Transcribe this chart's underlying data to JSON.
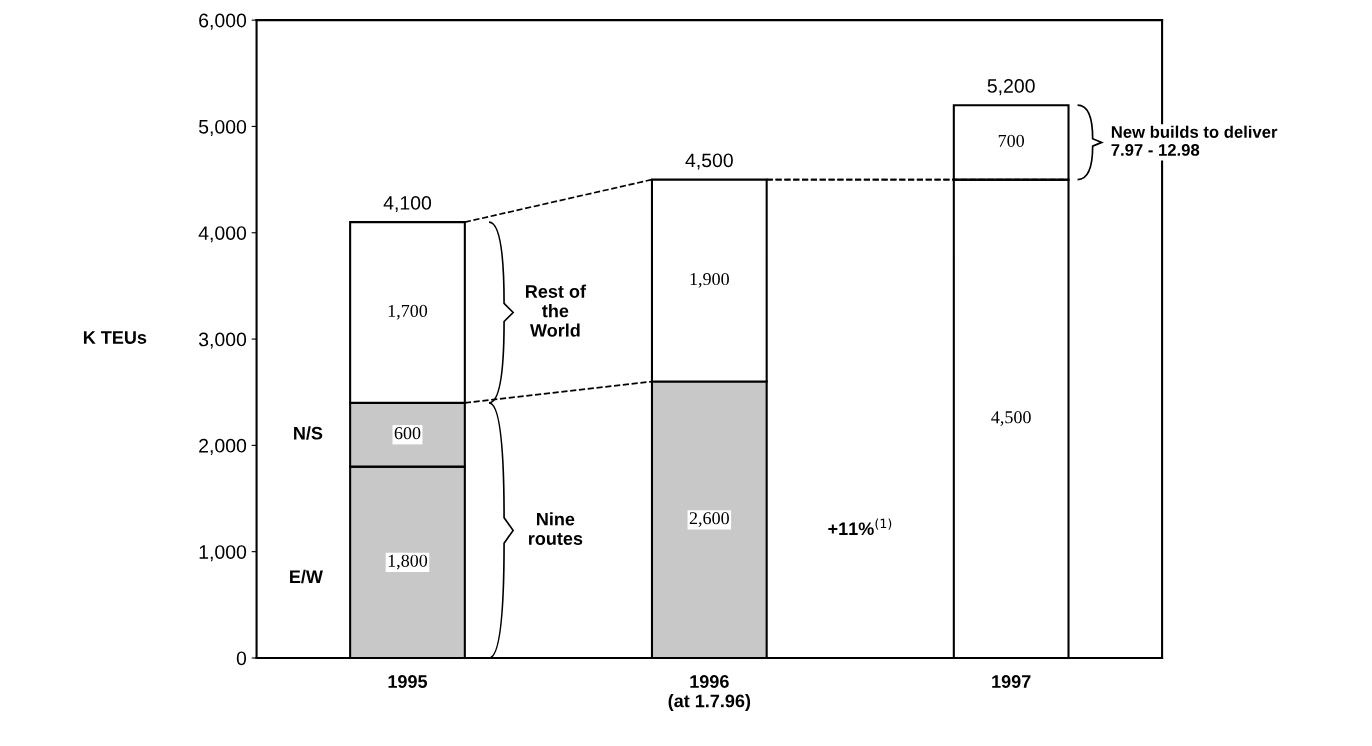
{
  "chart_data": {
    "type": "bar",
    "stacked": true,
    "categories": [
      "1995",
      "1996\n(at 1.7.96)",
      "1997"
    ],
    "series": [
      {
        "name": "E/W",
        "color": "#c8c8c8",
        "values": [
          1800,
          2600,
          null
        ],
        "value_labels": [
          "1,800",
          "2,600",
          null
        ]
      },
      {
        "name": "N/S",
        "color": "#c8c8c8",
        "values": [
          600,
          null,
          null
        ],
        "value_labels": [
          "600",
          null,
          null
        ]
      },
      {
        "color": "#ffffff",
        "values": [
          1700,
          1900,
          4500
        ],
        "value_labels": [
          "1,700",
          "1,900",
          "4,500"
        ]
      },
      {
        "color": "#ffffff",
        "values": [
          null,
          null,
          700
        ],
        "value_labels": [
          null,
          null,
          "700"
        ]
      }
    ],
    "totals": [
      "4,100",
      "4,500",
      "5,200"
    ],
    "ylabel": "K TEUs",
    "ylim": [
      0,
      6000
    ],
    "yticks": [
      0,
      {
        "value": 1000,
        "label": "1,000"
      },
      {
        "value": 2000,
        "label": "2,000"
      },
      {
        "value": 3000,
        "label": "3,000"
      },
      {
        "value": 4000,
        "label": "4,000"
      },
      {
        "value": 5000,
        "label": "5,000"
      },
      {
        "value": 6000,
        "label": "6,000"
      }
    ],
    "grid": false,
    "legend": false,
    "annotations": [
      "Rest of\nthe\nWorld",
      "Nine\nroutes",
      "New builds to deliver\n7.97 - 12.98",
      "+11%$^{(1)}$"
    ]
  }
}
